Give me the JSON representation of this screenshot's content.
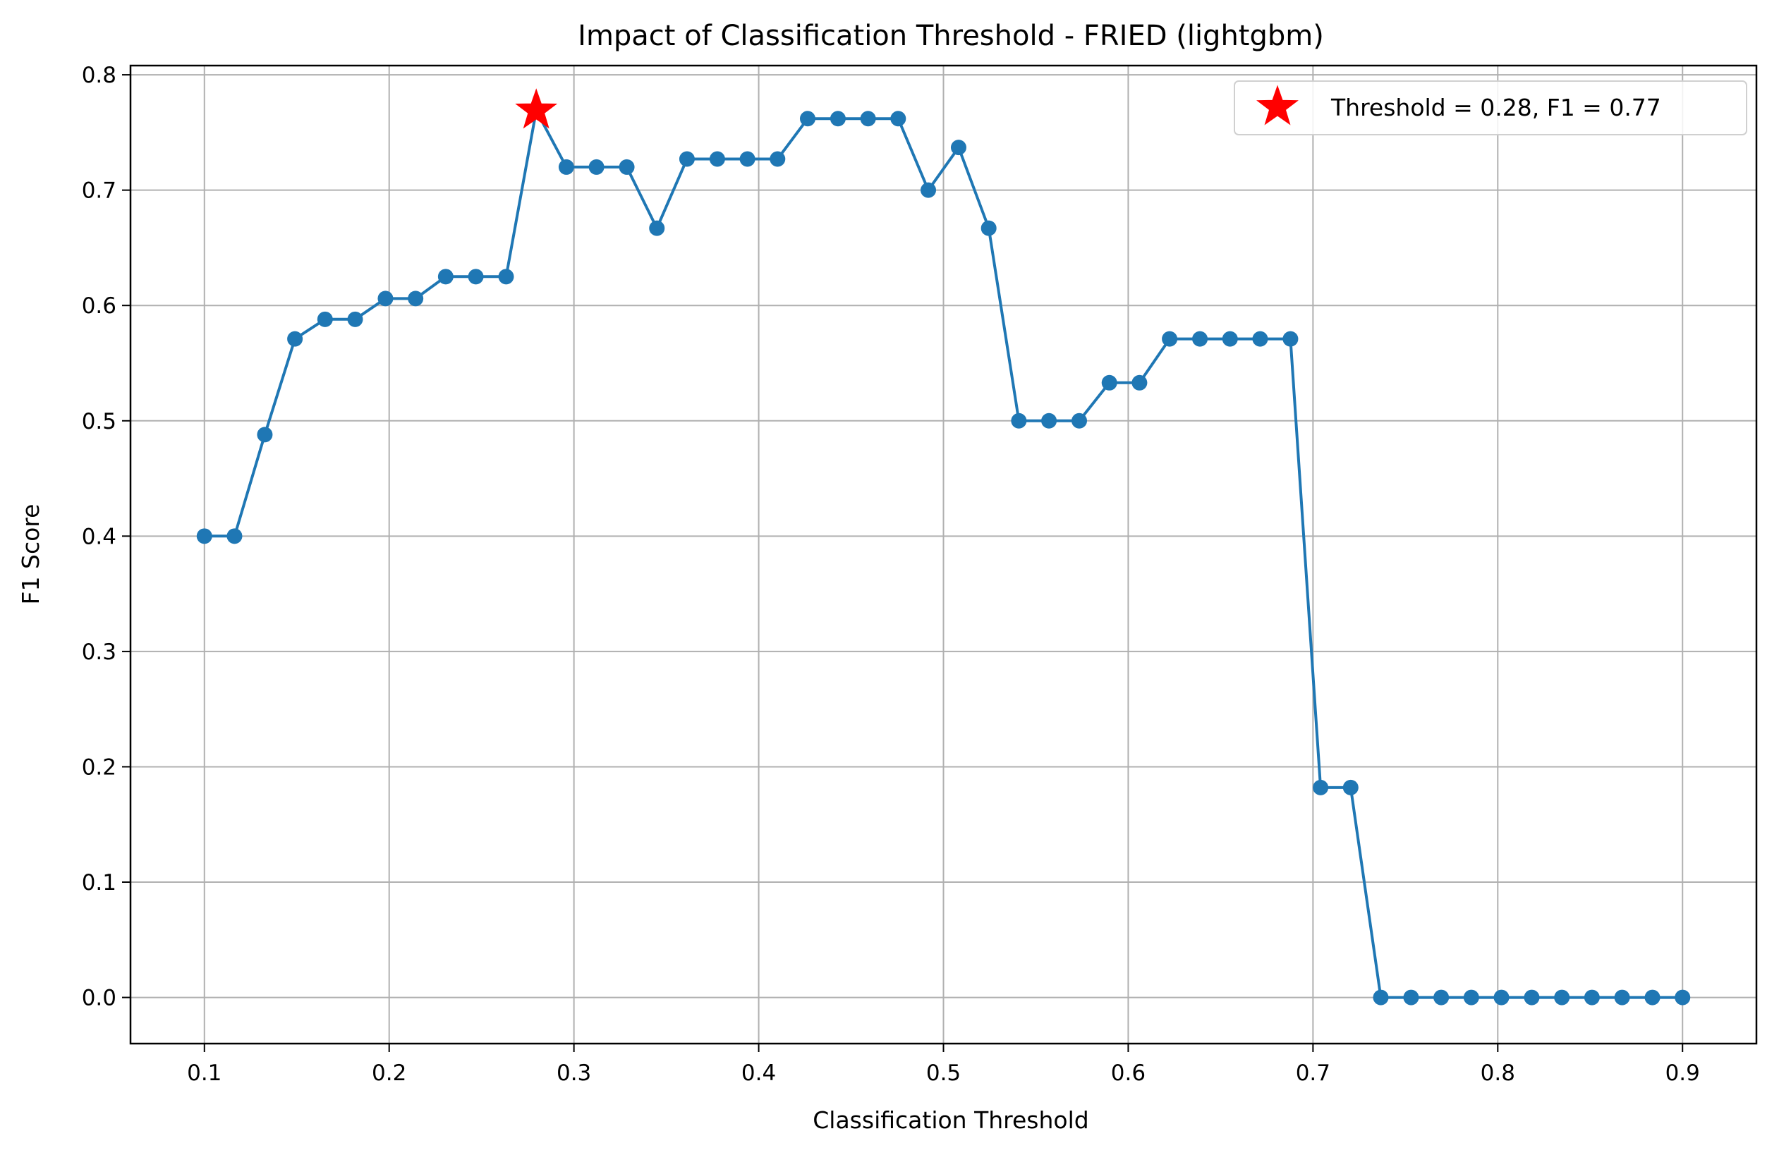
{
  "chart_data": {
    "type": "line",
    "title": "Impact of Classification Threshold - FRIED (lightgbm)",
    "xlabel": "Classification Threshold",
    "ylabel": "F1 Score",
    "xlim": [
      0.06,
      0.94
    ],
    "ylim": [
      -0.04,
      0.808
    ],
    "xticks": [
      0.1,
      0.2,
      0.3,
      0.4,
      0.5,
      0.6,
      0.7,
      0.8,
      0.9
    ],
    "xtick_labels": [
      "0.1",
      "0.2",
      "0.3",
      "0.4",
      "0.5",
      "0.6",
      "0.7",
      "0.8",
      "0.9"
    ],
    "yticks": [
      0.0,
      0.1,
      0.2,
      0.3,
      0.4,
      0.5,
      0.6,
      0.7,
      0.8
    ],
    "ytick_labels": [
      "0.0",
      "0.1",
      "0.2",
      "0.3",
      "0.4",
      "0.5",
      "0.6",
      "0.7",
      "0.8"
    ],
    "grid": true,
    "legend_position": "top-right",
    "series": [
      {
        "color": "#1f77b4",
        "marker": "circle",
        "x": [
          0.1,
          0.1163,
          0.1327,
          0.149,
          0.1653,
          0.1816,
          0.198,
          0.2143,
          0.2306,
          0.2469,
          0.2633,
          0.2796,
          0.2959,
          0.3122,
          0.3286,
          0.3449,
          0.3612,
          0.3776,
          0.3939,
          0.4102,
          0.4265,
          0.4429,
          0.4592,
          0.4755,
          0.4918,
          0.5082,
          0.5245,
          0.5408,
          0.5571,
          0.5735,
          0.5898,
          0.6061,
          0.6224,
          0.6388,
          0.6551,
          0.6714,
          0.6878,
          0.7041,
          0.7204,
          0.7367,
          0.7531,
          0.7694,
          0.7857,
          0.802,
          0.8184,
          0.8347,
          0.851,
          0.8673,
          0.8837,
          0.9
        ],
        "y": [
          0.4,
          0.4,
          0.488,
          0.571,
          0.588,
          0.588,
          0.606,
          0.606,
          0.625,
          0.625,
          0.625,
          0.769,
          0.72,
          0.72,
          0.72,
          0.667,
          0.727,
          0.727,
          0.727,
          0.727,
          0.762,
          0.762,
          0.762,
          0.762,
          0.7,
          0.737,
          0.667,
          0.5,
          0.5,
          0.5,
          0.533,
          0.533,
          0.571,
          0.571,
          0.571,
          0.571,
          0.571,
          0.182,
          0.182,
          0.0,
          0.0,
          0.0,
          0.0,
          0.0,
          0.0,
          0.0,
          0.0,
          0.0,
          0.0,
          0.0
        ]
      }
    ],
    "best_point": {
      "x": 0.2796,
      "y": 0.769,
      "color": "#ff0000",
      "marker": "star",
      "label": "Threshold = 0.28, F1 = 0.77"
    }
  }
}
